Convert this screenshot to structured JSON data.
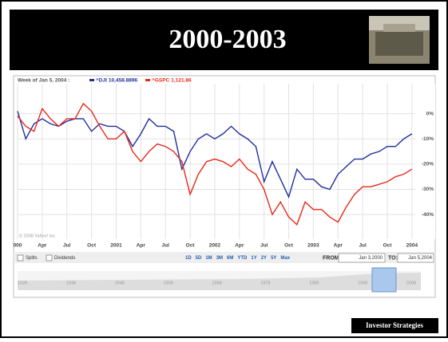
{
  "slide": {
    "title": "2000-2003",
    "footer": "Investor Strategies"
  },
  "chart_data": {
    "type": "line",
    "header": "Week of Jan 5, 2004 :",
    "copyright": "© 2008 Yahoo! Inc",
    "x": [
      0,
      1,
      2,
      3,
      4,
      5,
      6,
      7,
      8,
      9,
      10,
      11,
      12,
      13,
      14,
      15,
      16,
      17,
      18,
      19,
      20,
      21,
      22,
      23,
      24,
      25,
      26,
      27,
      28,
      29,
      30,
      31,
      32,
      33,
      34,
      35,
      36,
      37,
      38,
      39,
      40,
      41,
      42,
      43,
      44,
      45,
      46,
      47,
      48
    ],
    "series": [
      {
        "name": "^DJI",
        "quote": "10,458.8896",
        "color": "#1f2f9e",
        "values": [
          1,
          -10,
          -4,
          -2,
          -4,
          -5,
          -3,
          -2,
          -2,
          -7,
          -4,
          -5,
          -5,
          -7,
          -13,
          -8,
          -2,
          -5,
          -5,
          -7,
          -22,
          -15,
          -10,
          -8,
          -10,
          -8,
          -5,
          -8,
          -10,
          -13,
          -27,
          -19,
          -26,
          -33,
          -22,
          -26,
          -26,
          -29,
          -30,
          -24,
          -21,
          -18,
          -18,
          -16,
          -15,
          -13,
          -13,
          -10,
          -8
        ]
      },
      {
        "name": "^GSPC",
        "quote": "1,121.86",
        "color": "#e8281a",
        "values": [
          -1,
          -5,
          -7,
          2,
          -2,
          -5,
          -2,
          -2,
          4,
          1,
          -5,
          -10,
          -10,
          -7,
          -15,
          -19,
          -15,
          -12,
          -13,
          -15,
          -19,
          -32,
          -24,
          -19,
          -18,
          -19,
          -21,
          -18,
          -22,
          -24,
          -30,
          -40,
          -35,
          -41,
          -44,
          -35,
          -38,
          -38,
          -41,
          -43,
          -37,
          -32,
          -29,
          -29,
          -28,
          -27,
          -25,
          -24,
          -22
        ]
      }
    ],
    "xlim": [
      0,
      48.4
    ],
    "xticks": [
      {
        "value": 0,
        "label": "000"
      },
      {
        "value": 3,
        "label": "Apr"
      },
      {
        "value": 6,
        "label": "Jul"
      },
      {
        "value": 9,
        "label": "Oct"
      },
      {
        "value": 12,
        "label": "2001"
      },
      {
        "value": 15,
        "label": "Apr"
      },
      {
        "value": 18,
        "label": "Jul"
      },
      {
        "value": 21,
        "label": "Oct"
      },
      {
        "value": 24,
        "label": "2002"
      },
      {
        "value": 27,
        "label": "Apr"
      },
      {
        "value": 30,
        "label": "Jul"
      },
      {
        "value": 33,
        "label": "Oct"
      },
      {
        "value": 36,
        "label": "2003"
      },
      {
        "value": 39,
        "label": "Apr"
      },
      {
        "value": 42,
        "label": "Jul"
      },
      {
        "value": 45,
        "label": "Oct"
      },
      {
        "value": 48,
        "label": "2004"
      }
    ],
    "ylim": [
      -46.6,
      10.3
    ],
    "yticks": [
      {
        "value": 0,
        "label": "0%"
      },
      {
        "value": -10,
        "label": "-10%"
      },
      {
        "value": -20,
        "label": "-20%"
      },
      {
        "value": -30,
        "label": "-30%"
      },
      {
        "value": -40,
        "label": "-40%"
      }
    ],
    "grid": true
  },
  "controls": {
    "splits": "Splits",
    "dividends": "Dividends",
    "ranges": [
      "1D",
      "5D",
      "1M",
      "3M",
      "6M",
      "YTD",
      "1Y",
      "2Y",
      "5Y",
      "Max"
    ],
    "from_label": "FROM:",
    "from": "Jan 3,2000",
    "to_label": "TO:",
    "to": "Jan 5,2004",
    "timeline": [
      "1928",
      "1938",
      "1948",
      "1958",
      "1968",
      "1978",
      "1988",
      "1998",
      "2008"
    ]
  }
}
